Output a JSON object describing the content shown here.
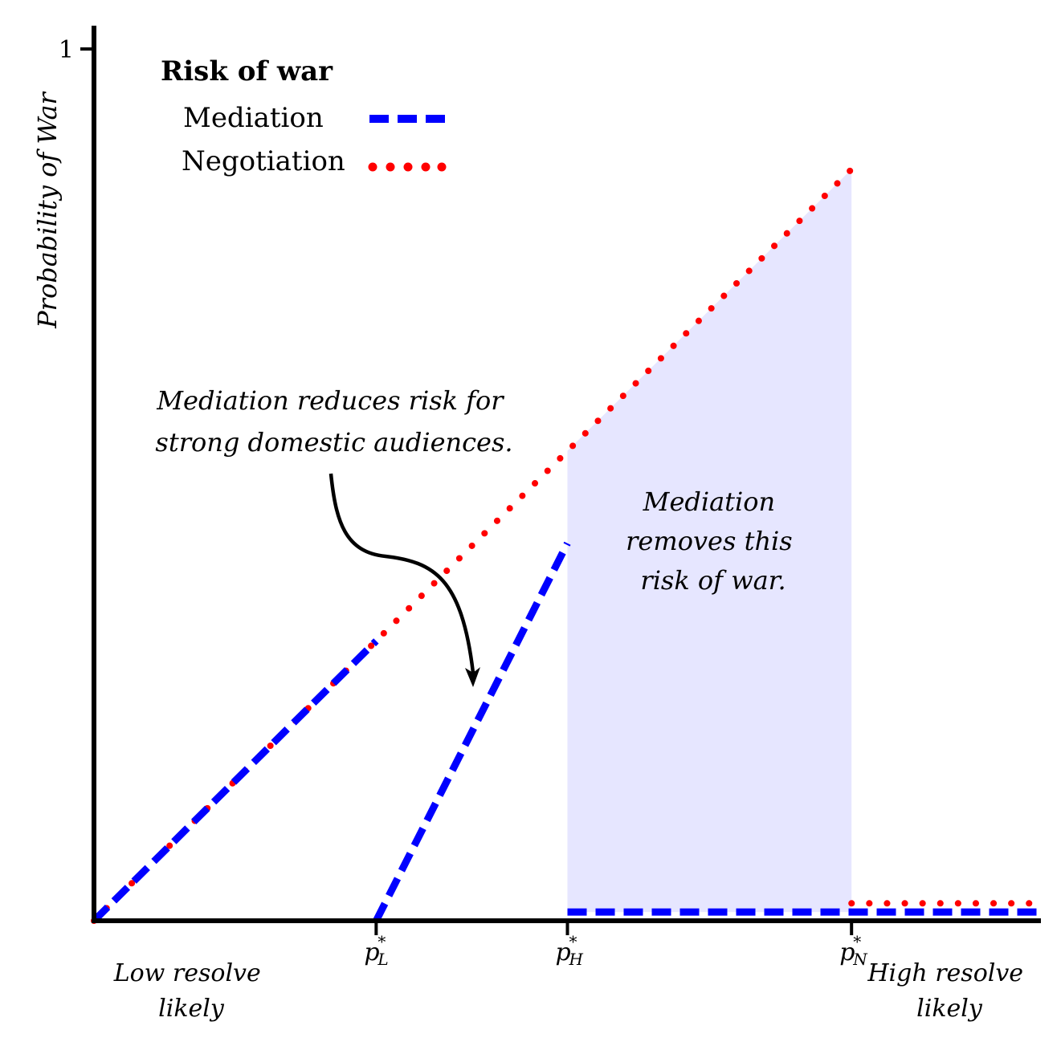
{
  "chart_data": {
    "type": "line",
    "ylabel": "Probability of War",
    "yticks": [
      {
        "value": 1,
        "label": "1"
      }
    ],
    "ylim": [
      0,
      1
    ],
    "xlim": [
      0,
      1
    ],
    "x_ticks": [
      {
        "name": "pL",
        "value": 0.298,
        "base": "p",
        "sup": "*",
        "sub": "L"
      },
      {
        "name": "pH",
        "value": 0.5,
        "base": "p",
        "sup": "*",
        "sub": "H"
      },
      {
        "name": "pN",
        "value": 0.8,
        "base": "p",
        "sup": "*",
        "sub": "N"
      }
    ],
    "x_end_labels": {
      "left": [
        "Low resolve",
        "likely"
      ],
      "right": [
        "High resolve",
        "likely"
      ]
    },
    "legend": {
      "title": "Risk of war",
      "placement": "top-left",
      "entries": [
        {
          "label": "Mediation",
          "color": "#0000ff",
          "style": "dashed"
        },
        {
          "label": "Negotiation",
          "color": "#ff0000",
          "style": "dotted"
        }
      ]
    },
    "series": [
      {
        "name": "Negotiation",
        "color": "#ff0000",
        "style": "dotted",
        "segments": [
          [
            [
              0,
              0
            ],
            [
              0.8,
              0.862
            ]
          ],
          [
            [
              0.8,
              0.02
            ],
            [
              1.0,
              0.02
            ]
          ]
        ]
      },
      {
        "name": "Mediation",
        "color": "#0000ff",
        "style": "dashed",
        "segments": [
          [
            [
              0,
              0
            ],
            [
              0.298,
              0.321
            ]
          ],
          [
            [
              0.298,
              0
            ],
            [
              0.5,
              0.433
            ]
          ],
          [
            [
              0.5,
              0.01
            ],
            [
              1.0,
              0.01
            ]
          ]
        ]
      }
    ],
    "shaded_region": {
      "color": "#e6e6ff",
      "polygon": [
        [
          0.5,
          0.01
        ],
        [
          0.5,
          0.539
        ],
        [
          0.8,
          0.862
        ],
        [
          0.8,
          0.01
        ]
      ]
    },
    "annotations": [
      {
        "name": "mediation-reduces",
        "lines": [
          "Mediation reduces risk for",
          "strong domestic audiences."
        ]
      },
      {
        "name": "mediation-removes",
        "lines": [
          "Mediation",
          "removes this",
          "risk of war."
        ]
      }
    ]
  }
}
